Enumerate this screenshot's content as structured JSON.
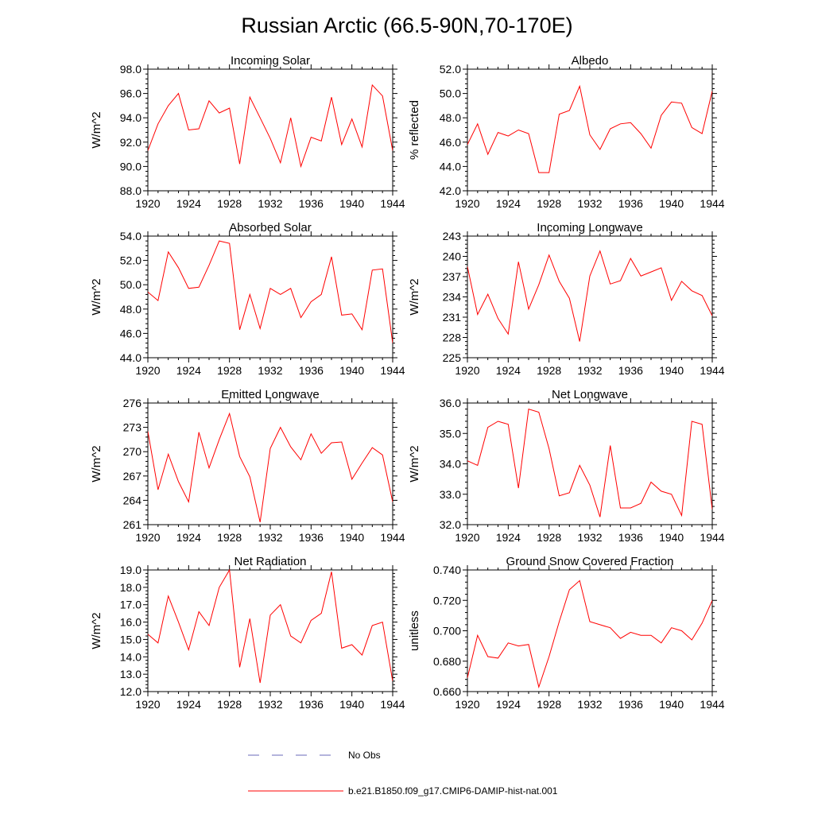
{
  "title": "Russian Arctic (66.5-90N,70-170E)",
  "legend": {
    "no_obs_label": "No Obs",
    "no_obs_color": "#6a6ab8",
    "model_label": "b.e21.B1850.f09_g17.CMIP6-DAMIP-hist-nat.001",
    "model_color": "#ff0000"
  },
  "chart_data": [
    {
      "type": "line",
      "title": "Incoming Solar",
      "ylabel": "W/m^2",
      "xlim": [
        1920,
        1944
      ],
      "ylim": [
        88.0,
        98.0
      ],
      "x_ticks": [
        "1920",
        "1924",
        "1928",
        "1932",
        "1936",
        "1940",
        "1944"
      ],
      "y_ticks": [
        "88.0",
        "90.0",
        "92.0",
        "94.0",
        "96.0",
        "98.0"
      ],
      "series": [
        {
          "x": [
            1920,
            1921,
            1922,
            1923,
            1924,
            1925,
            1926,
            1927,
            1928,
            1929,
            1930,
            1931,
            1932,
            1933,
            1934,
            1935,
            1936,
            1937,
            1938,
            1939,
            1940,
            1941,
            1942,
            1943,
            1944
          ],
          "values": [
            91.3,
            93.5,
            95.0,
            96.0,
            93.0,
            93.1,
            95.4,
            94.4,
            94.8,
            90.2,
            95.7,
            94.0,
            92.3,
            90.3,
            94.0,
            90.0,
            92.4,
            92.1,
            95.7,
            91.8,
            93.9,
            91.6,
            96.7,
            95.8,
            91.3
          ]
        }
      ]
    },
    {
      "type": "line",
      "title": "Albedo",
      "ylabel": "% reflected",
      "xlim": [
        1920,
        1944
      ],
      "ylim": [
        42.0,
        52.0
      ],
      "x_ticks": [
        "1920",
        "1924",
        "1928",
        "1932",
        "1936",
        "1940",
        "1944"
      ],
      "y_ticks": [
        "42.0",
        "44.0",
        "46.0",
        "48.0",
        "50.0",
        "52.0"
      ],
      "series": [
        {
          "x": [
            1920,
            1921,
            1922,
            1923,
            1924,
            1925,
            1926,
            1927,
            1928,
            1929,
            1930,
            1931,
            1932,
            1933,
            1934,
            1935,
            1936,
            1937,
            1938,
            1939,
            1940,
            1941,
            1942,
            1943,
            1944
          ],
          "values": [
            45.8,
            47.5,
            45.0,
            46.8,
            46.5,
            47.0,
            46.7,
            43.5,
            43.5,
            48.3,
            48.6,
            50.6,
            46.6,
            45.4,
            47.1,
            47.5,
            47.6,
            46.7,
            45.5,
            48.2,
            49.3,
            49.2,
            47.2,
            46.7,
            50.2
          ]
        }
      ]
    },
    {
      "type": "line",
      "title": "Absorbed Solar",
      "ylabel": "W/m^2",
      "xlim": [
        1920,
        1944
      ],
      "ylim": [
        44.0,
        54.0
      ],
      "x_ticks": [
        "1920",
        "1924",
        "1928",
        "1932",
        "1936",
        "1940",
        "1944"
      ],
      "y_ticks": [
        "44.0",
        "46.0",
        "48.0",
        "50.0",
        "52.0",
        "54.0"
      ],
      "series": [
        {
          "x": [
            1920,
            1921,
            1922,
            1923,
            1924,
            1925,
            1926,
            1927,
            1928,
            1929,
            1930,
            1931,
            1932,
            1933,
            1934,
            1935,
            1936,
            1937,
            1938,
            1939,
            1940,
            1941,
            1942,
            1943,
            1944
          ],
          "values": [
            49.4,
            48.7,
            52.7,
            51.4,
            49.7,
            49.8,
            51.6,
            53.6,
            53.4,
            46.3,
            49.2,
            46.4,
            49.7,
            49.2,
            49.7,
            47.3,
            48.6,
            49.2,
            52.3,
            47.5,
            47.6,
            46.3,
            51.2,
            51.3,
            45.2
          ]
        }
      ]
    },
    {
      "type": "line",
      "title": "Incoming Longwave",
      "ylabel": "W/m^2",
      "xlim": [
        1920,
        1944
      ],
      "ylim": [
        225,
        243
      ],
      "x_ticks": [
        "1920",
        "1924",
        "1928",
        "1932",
        "1936",
        "1940",
        "1944"
      ],
      "y_ticks": [
        "225",
        "228",
        "231",
        "234",
        "237",
        "240",
        "243"
      ],
      "series": [
        {
          "x": [
            1920,
            1921,
            1922,
            1923,
            1924,
            1925,
            1926,
            1927,
            1928,
            1929,
            1930,
            1931,
            1932,
            1933,
            1934,
            1935,
            1936,
            1937,
            1938,
            1939,
            1940,
            1941,
            1942,
            1943,
            1944
          ],
          "values": [
            238.5,
            231.4,
            234.4,
            230.8,
            228.5,
            239.2,
            232.2,
            235.8,
            240.2,
            236.3,
            233.8,
            227.4,
            237.1,
            240.8,
            235.9,
            236.4,
            239.7,
            237.1,
            237.7,
            238.3,
            233.5,
            236.3,
            234.9,
            234.2,
            231.2
          ]
        }
      ]
    },
    {
      "type": "line",
      "title": "Emitted Longwave",
      "ylabel": "W/m^2",
      "xlim": [
        1920,
        1944
      ],
      "ylim": [
        261,
        276
      ],
      "x_ticks": [
        "1920",
        "1924",
        "1928",
        "1932",
        "1936",
        "1940",
        "1944"
      ],
      "y_ticks": [
        "261",
        "264",
        "267",
        "270",
        "273",
        "276"
      ],
      "series": [
        {
          "x": [
            1920,
            1921,
            1922,
            1923,
            1924,
            1925,
            1926,
            1927,
            1928,
            1929,
            1930,
            1931,
            1932,
            1933,
            1934,
            1935,
            1936,
            1937,
            1938,
            1939,
            1940,
            1941,
            1942,
            1943,
            1944
          ],
          "values": [
            272.5,
            265.3,
            269.7,
            266.3,
            263.8,
            272.4,
            268.0,
            271.5,
            274.7,
            269.4,
            266.9,
            261.3,
            270.4,
            273.0,
            270.6,
            269.0,
            272.2,
            269.8,
            271.1,
            271.2,
            266.6,
            268.6,
            270.5,
            269.6,
            263.8
          ]
        }
      ]
    },
    {
      "type": "line",
      "title": "Net Longwave",
      "ylabel": "W/m^2",
      "xlim": [
        1920,
        1944
      ],
      "ylim": [
        32.0,
        36.0
      ],
      "x_ticks": [
        "1920",
        "1924",
        "1928",
        "1932",
        "1936",
        "1940",
        "1944"
      ],
      "y_ticks": [
        "32.0",
        "33.0",
        "34.0",
        "35.0",
        "36.0"
      ],
      "series": [
        {
          "x": [
            1920,
            1921,
            1922,
            1923,
            1924,
            1925,
            1926,
            1927,
            1928,
            1929,
            1930,
            1931,
            1932,
            1933,
            1934,
            1935,
            1936,
            1937,
            1938,
            1939,
            1940,
            1941,
            1942,
            1943,
            1944
          ],
          "values": [
            34.1,
            33.95,
            35.2,
            35.4,
            35.3,
            33.2,
            35.8,
            35.7,
            34.5,
            32.95,
            33.05,
            33.95,
            33.3,
            32.25,
            34.6,
            32.55,
            32.55,
            32.7,
            33.4,
            33.1,
            33.0,
            32.3,
            35.4,
            35.3,
            32.5
          ]
        }
      ]
    },
    {
      "type": "line",
      "title": "Net Radiation",
      "ylabel": "W/m^2",
      "xlim": [
        1920,
        1944
      ],
      "ylim": [
        12.0,
        19.0
      ],
      "x_ticks": [
        "1920",
        "1924",
        "1928",
        "1932",
        "1936",
        "1940",
        "1944"
      ],
      "y_ticks": [
        "12.0",
        "13.0",
        "14.0",
        "15.0",
        "16.0",
        "17.0",
        "18.0",
        "19.0"
      ],
      "series": [
        {
          "x": [
            1920,
            1921,
            1922,
            1923,
            1924,
            1925,
            1926,
            1927,
            1928,
            1929,
            1930,
            1931,
            1932,
            1933,
            1934,
            1935,
            1936,
            1937,
            1938,
            1939,
            1940,
            1941,
            1942,
            1943,
            1944
          ],
          "values": [
            15.3,
            14.8,
            17.5,
            16.0,
            14.4,
            16.6,
            15.8,
            18.0,
            19.0,
            13.4,
            16.2,
            12.5,
            16.4,
            17.0,
            15.2,
            14.8,
            16.1,
            16.5,
            18.9,
            14.5,
            14.7,
            14.1,
            15.8,
            16.0,
            12.6
          ]
        }
      ]
    },
    {
      "type": "line",
      "title": "Ground Snow Covered Fraction",
      "ylabel": "unitless",
      "xlim": [
        1920,
        1944
      ],
      "ylim": [
        0.66,
        0.74
      ],
      "x_ticks": [
        "1920",
        "1924",
        "1928",
        "1932",
        "1936",
        "1940",
        "1944"
      ],
      "y_ticks": [
        "0.660",
        "0.680",
        "0.700",
        "0.720",
        "0.740"
      ],
      "series": [
        {
          "x": [
            1920,
            1921,
            1922,
            1923,
            1924,
            1925,
            1926,
            1927,
            1928,
            1929,
            1930,
            1931,
            1932,
            1933,
            1934,
            1935,
            1936,
            1937,
            1938,
            1939,
            1940,
            1941,
            1942,
            1943,
            1944
          ],
          "values": [
            0.669,
            0.697,
            0.683,
            0.682,
            0.692,
            0.69,
            0.691,
            0.663,
            0.683,
            0.706,
            0.727,
            0.733,
            0.706,
            0.704,
            0.702,
            0.695,
            0.699,
            0.697,
            0.697,
            0.692,
            0.702,
            0.7,
            0.694,
            0.705,
            0.72
          ]
        }
      ]
    }
  ]
}
